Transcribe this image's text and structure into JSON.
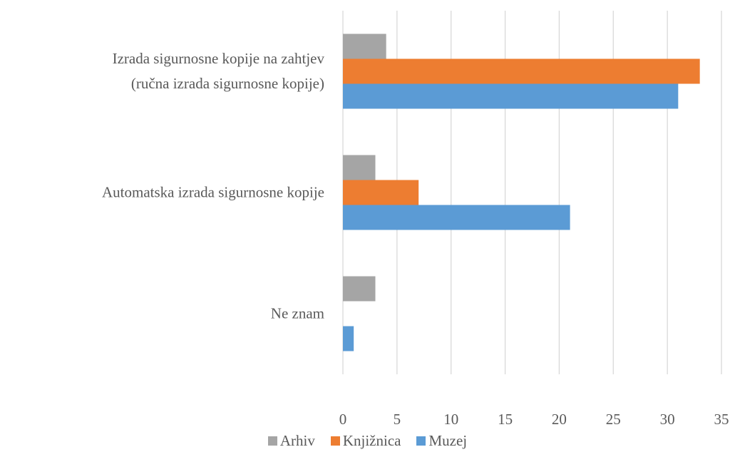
{
  "chart_data": {
    "type": "bar",
    "orientation": "horizontal",
    "categories": [
      "Izrada sigurnosne kopije na zahtjev\n(ručna izrada sigurnosne kopije)",
      "Automatska izrada sigurnosne kopije",
      "Ne znam"
    ],
    "series": [
      {
        "name": "Arhiv",
        "color": "#a5a5a5",
        "values": [
          4,
          3,
          3
        ]
      },
      {
        "name": "Knjižnica",
        "color": "#ed7d31",
        "values": [
          33,
          7,
          0
        ]
      },
      {
        "name": "Muzej",
        "color": "#5b9bd5",
        "values": [
          31,
          21,
          1
        ]
      }
    ],
    "xlim": [
      0,
      35
    ],
    "xticks": [
      0,
      5,
      10,
      15,
      20,
      25,
      30,
      35
    ],
    "grid": true,
    "legend": "bottom"
  }
}
